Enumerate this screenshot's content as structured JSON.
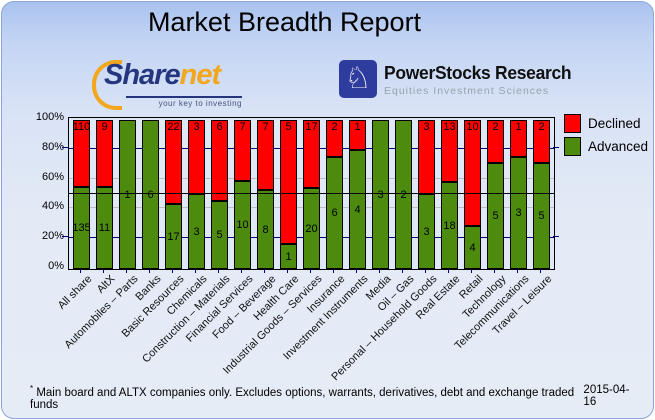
{
  "header": {
    "title": "Market Breadth Report",
    "sharenet": {
      "brand_share": "Share",
      "brand_net": "net",
      "tagline": "your key to investing"
    },
    "powerstocks": {
      "name": "PowerStocks  Research",
      "tagline": "Equities Investment Sciences",
      "knight_icon": "chess-knight"
    }
  },
  "chart_data": {
    "type": "bar",
    "stacked": true,
    "stack_mode": "percent",
    "title": "Market Breadth Report",
    "categories": [
      "All share",
      "AltX",
      "Automobiles – Parts",
      "Banks",
      "Basic Resources",
      "Chemicals",
      "Construction – Materials",
      "Financial Services",
      "Food – Beverage",
      "Health Care",
      "Industrial Goods – Services",
      "Insurance",
      "Investment Instruments",
      "Media",
      "Oil – Gas",
      "Personal – Household Goods",
      "Real Estate",
      "Retail",
      "Technology",
      "Telecommunications",
      "Travel – Leisure"
    ],
    "series": [
      {
        "name": "Declined",
        "color": "#ff0000",
        "values": [
          110,
          9,
          0,
          0,
          22,
          3,
          6,
          7,
          7,
          5,
          17,
          2,
          1,
          0,
          0,
          3,
          13,
          10,
          2,
          1,
          2
        ]
      },
      {
        "name": "Advanced",
        "color": "#4d8b0f",
        "values": [
          135,
          11,
          1,
          6,
          17,
          3,
          5,
          10,
          8,
          1,
          20,
          6,
          4,
          3,
          2,
          3,
          18,
          4,
          5,
          3,
          5
        ]
      }
    ],
    "y_ticks": [
      "100%",
      "80%",
      "60%",
      "40%",
      "20%",
      "0%"
    ],
    "ylim": [
      0,
      100
    ],
    "grid": true,
    "grid_colors": {
      "navy": "#000080",
      "gray": "#bdbdbd",
      "half_line": "#000000"
    },
    "legend_position": "right-top"
  },
  "footer": {
    "note_mark": "*",
    "note": " Main board and ALTX companies only. Excludes options, warrants, derivatives, debt and exchange traded funds",
    "date": "2015-04-16"
  }
}
